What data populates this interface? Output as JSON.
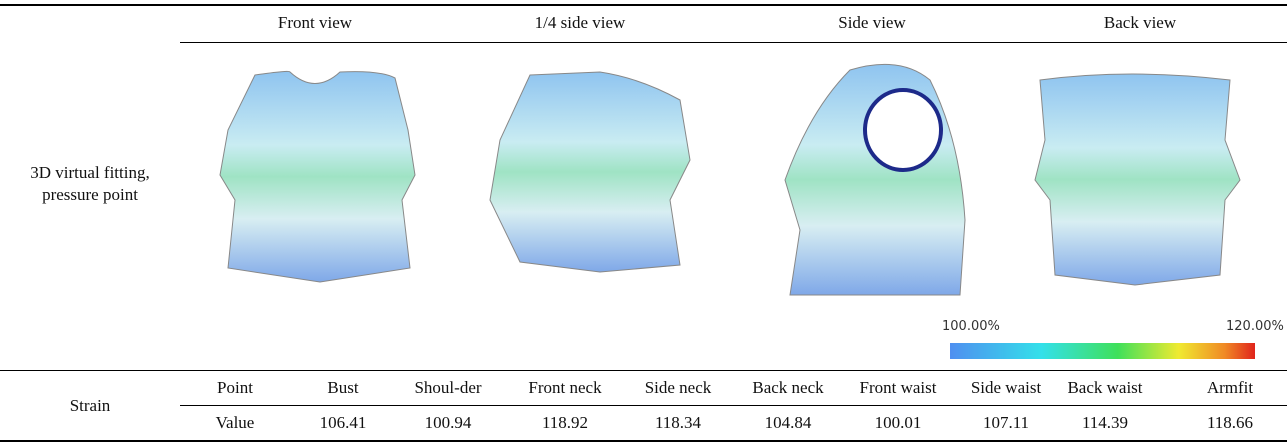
{
  "header": {
    "columns": [
      "Front view",
      "1/4 side view",
      "Side view",
      "Back view"
    ]
  },
  "fitting_row": {
    "label": "3D virtual fitting, pressure point",
    "scale": {
      "min_label": "100.00%",
      "max_label": "120.00%"
    }
  },
  "strain": {
    "label": "Strain",
    "point_label": "Point",
    "value_label": "Value",
    "points": [
      "Bust",
      "Shoul-der",
      "Front neck",
      "Side neck",
      "Back neck",
      "Front waist",
      "Side waist",
      "Back waist",
      "Armfit"
    ],
    "values": [
      106.41,
      100.94,
      118.92,
      118.34,
      104.84,
      100.01,
      107.11,
      114.39,
      118.66
    ]
  }
}
